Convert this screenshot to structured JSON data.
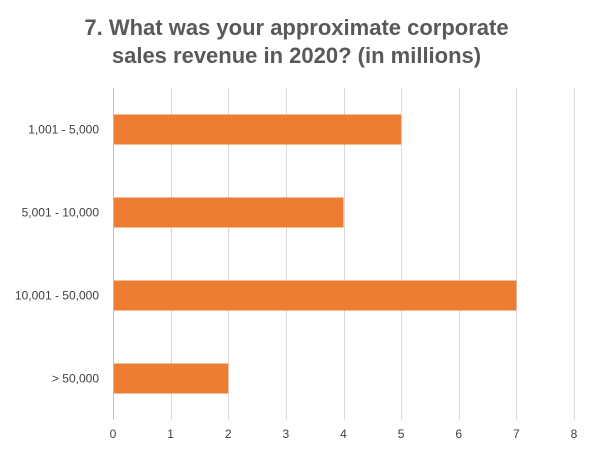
{
  "chart_data": {
    "type": "bar",
    "orientation": "horizontal",
    "title_lines": [
      "7. What was your approximate corporate",
      "sales revenue in 2020? (in millions)"
    ],
    "categories": [
      "1,001 - 5,000",
      "5,001 - 10,000",
      "10,001 - 50,000",
      "> 50,000"
    ],
    "values": [
      5,
      4,
      7,
      2
    ],
    "xlabel": "",
    "ylabel": "",
    "xlim": [
      0,
      8
    ],
    "x_ticks": [
      "0",
      "1",
      "2",
      "3",
      "4",
      "5",
      "6",
      "7",
      "8"
    ],
    "grid": "vertical",
    "legend": "none",
    "colors": {
      "bar": "#ED7D31",
      "grid": "#D9D9D9",
      "axis": "#BFBFBF",
      "title": "#595959",
      "text": "#404040"
    }
  }
}
